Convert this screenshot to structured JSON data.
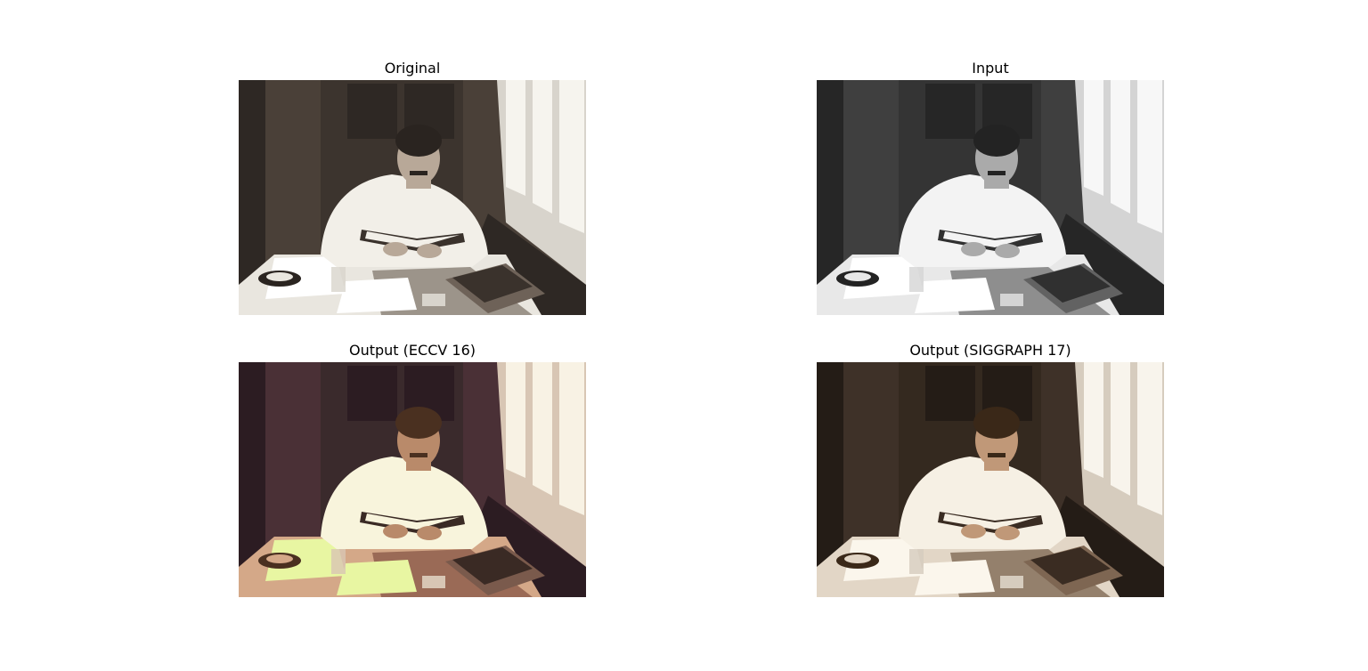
{
  "figure": {
    "panels": [
      {
        "id": "original",
        "title": "Original",
        "tone": "sepia"
      },
      {
        "id": "input",
        "title": "Input",
        "tone": "grayscale"
      },
      {
        "id": "eccv",
        "title": "Output (ECCV 16)",
        "tone": "eccv"
      },
      {
        "id": "siggraph",
        "title": "Output (SIGGRAPH 17)",
        "tone": "siggraph"
      }
    ]
  },
  "palettes": {
    "sepia": {
      "wall": "#4a4038",
      "wall_dark": "#2e2824",
      "door": "#3c342e",
      "shirt": "#f2efe8",
      "skin": "#b8a898",
      "hair": "#2a2420",
      "table": "#e9e6df",
      "table_shade": "#9c948a",
      "window": "#f6f4ee",
      "window_frame": "#d8d4cc",
      "book": "#3a322c",
      "books_stack": "#6e6258",
      "light_patch": "#ffffff"
    },
    "grayscale": {
      "wall": "#3f3f3f",
      "wall_dark": "#262626",
      "door": "#343434",
      "shirt": "#f3f3f3",
      "skin": "#aaaaaa",
      "hair": "#232323",
      "table": "#e8e8e8",
      "table_shade": "#8e8e8e",
      "window": "#f7f7f7",
      "window_frame": "#d4d4d4",
      "book": "#303030",
      "books_stack": "#626262",
      "light_patch": "#ffffff"
    },
    "eccv": {
      "wall": "#4a3036",
      "wall_dark": "#2c1c22",
      "door": "#3a2a2c",
      "shirt": "#f8f4dc",
      "skin": "#b98a6a",
      "hair": "#4a3020",
      "table": "#d4a888",
      "table_shade": "#9a6a56",
      "window": "#f8f2e4",
      "window_frame": "#d8c6b4",
      "book": "#3a2a24",
      "books_stack": "#7a5a4c",
      "light_patch": "#e8f6a2"
    },
    "siggraph": {
      "wall": "#3e3128",
      "wall_dark": "#241c16",
      "door": "#34291f",
      "shirt": "#f6f0e4",
      "skin": "#c09878",
      "hair": "#3a2818",
      "table": "#e2d6c6",
      "table_shade": "#94806c",
      "window": "#f8f4ec",
      "window_frame": "#d6ccbe",
      "book": "#3a2c22",
      "books_stack": "#7e6652",
      "light_patch": "#fbf6ec"
    }
  }
}
